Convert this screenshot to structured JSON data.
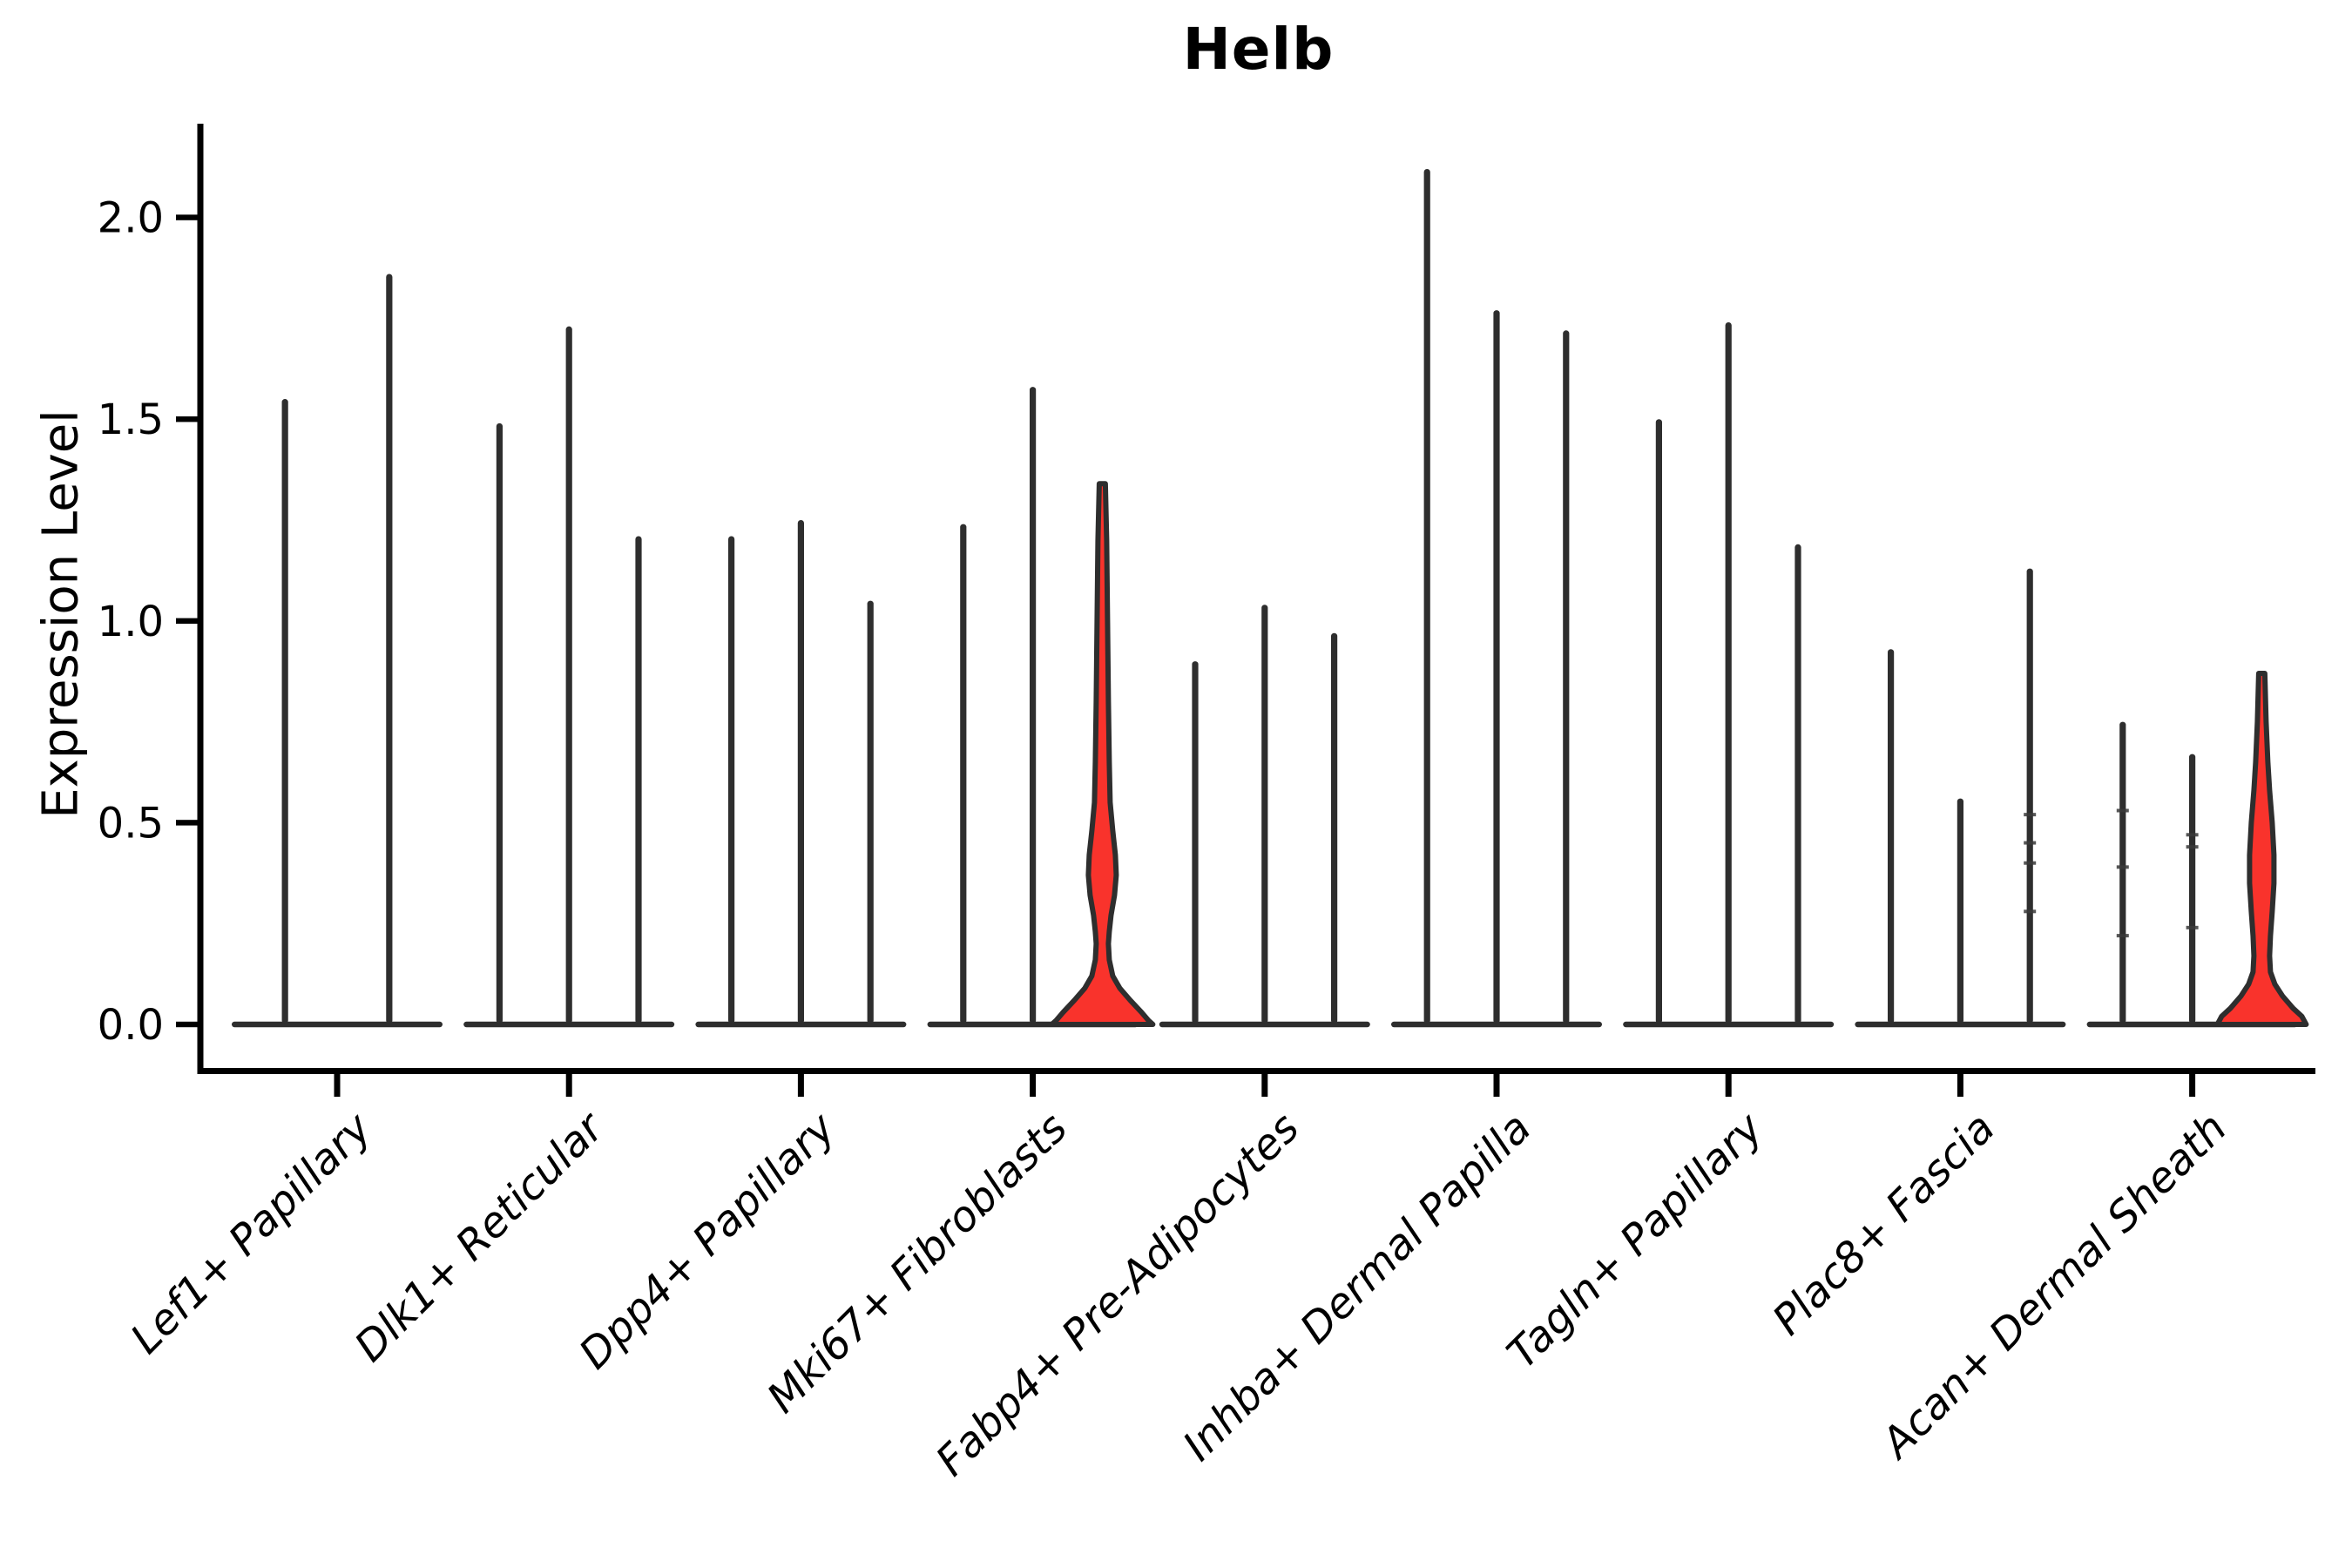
{
  "chart_data": {
    "type": "violin",
    "title": "Helb",
    "ylabel": "Expression Level",
    "xlabel": "",
    "ylim": [
      0,
      2.23
    ],
    "yticks": [
      "0.0",
      "0.5",
      "1.0",
      "1.5",
      "2.0"
    ],
    "ytick_values": [
      0.0,
      0.5,
      1.0,
      1.5,
      2.0
    ],
    "grid": false,
    "legend": "none",
    "colors": {
      "stem": "#2e2e2e",
      "violin_fill": "#f9332c",
      "axis": "#000000",
      "text": "#000000",
      "background": "#ffffff"
    },
    "groups": [
      {
        "label": "Lef1+ Papillary",
        "violins": [
          {
            "offset": -0.225,
            "max": 1.55,
            "shape": "spike"
          },
          {
            "offset": 0.225,
            "max": 1.86,
            "shape": "spike"
          }
        ]
      },
      {
        "label": "Dlk1+ Reticular",
        "violins": [
          {
            "offset": -0.3,
            "max": 1.49,
            "shape": "spike"
          },
          {
            "offset": 0,
            "max": 1.73,
            "shape": "spike"
          },
          {
            "offset": 0.3,
            "max": 1.21,
            "shape": "spike"
          }
        ]
      },
      {
        "label": "Dpp4+ Papillary",
        "violins": [
          {
            "offset": -0.3,
            "max": 1.21,
            "shape": "spike"
          },
          {
            "offset": 0,
            "max": 1.25,
            "shape": "spike"
          },
          {
            "offset": 0.3,
            "max": 1.05,
            "shape": "spike"
          }
        ]
      },
      {
        "label": "Mki67+ Fibroblasts",
        "violins": [
          {
            "offset": -0.3,
            "max": 1.24,
            "shape": "spike"
          },
          {
            "offset": 0,
            "max": 1.58,
            "shape": "spike"
          },
          {
            "offset": 0.3,
            "max": 1.34,
            "shape": "violin",
            "filled": true,
            "profile": [
              [
                1.34,
                3.5
              ],
              [
                1.2,
                5
              ],
              [
                1.0,
                6
              ],
              [
                0.8,
                7
              ],
              [
                0.65,
                8
              ],
              [
                0.55,
                9
              ],
              [
                0.48,
                12
              ],
              [
                0.42,
                15
              ],
              [
                0.37,
                16
              ],
              [
                0.32,
                14
              ],
              [
                0.27,
                10
              ],
              [
                0.23,
                8
              ],
              [
                0.2,
                7
              ],
              [
                0.16,
                8
              ],
              [
                0.12,
                12
              ],
              [
                0.09,
                20
              ],
              [
                0.06,
                32
              ],
              [
                0.03,
                45
              ],
              [
                0.01,
                53
              ],
              [
                0.0,
                58
              ]
            ]
          }
        ]
      },
      {
        "label": "Fabp4+ Pre-Adipocytes",
        "violins": [
          {
            "offset": -0.3,
            "max": 0.9,
            "shape": "spike"
          },
          {
            "offset": 0,
            "max": 1.04,
            "shape": "spike"
          },
          {
            "offset": 0.3,
            "max": 0.97,
            "shape": "spike"
          }
        ]
      },
      {
        "label": "Inhba+ Dermal Papilla",
        "violins": [
          {
            "offset": -0.3,
            "max": 2.12,
            "shape": "spike"
          },
          {
            "offset": 0,
            "max": 1.77,
            "shape": "spike"
          },
          {
            "offset": 0.3,
            "max": 1.72,
            "shape": "spike"
          }
        ]
      },
      {
        "label": "Tagln+ Papillary",
        "violins": [
          {
            "offset": -0.3,
            "max": 1.5,
            "shape": "spike"
          },
          {
            "offset": 0,
            "max": 1.74,
            "shape": "spike"
          },
          {
            "offset": 0.3,
            "max": 1.19,
            "shape": "spike"
          }
        ]
      },
      {
        "label": "Plac8+ Fascia",
        "violins": [
          {
            "offset": -0.3,
            "max": 0.93,
            "shape": "spike"
          },
          {
            "offset": 0,
            "max": 0.56,
            "shape": "spike"
          },
          {
            "offset": 0.3,
            "max": 1.13,
            "shape": "spike",
            "points": [
              0.52,
              0.45,
              0.4,
              0.28
            ]
          }
        ]
      },
      {
        "label": "Acan+ Dermal Sheath",
        "violins": [
          {
            "offset": -0.3,
            "max": 0.75,
            "shape": "spike",
            "points": [
              0.53,
              0.39,
              0.22
            ]
          },
          {
            "offset": 0,
            "max": 0.67,
            "shape": "spike",
            "points": [
              0.47,
              0.44,
              0.24
            ]
          },
          {
            "offset": 0.3,
            "max": 0.87,
            "shape": "violin",
            "filled": true,
            "profile": [
              [
                0.87,
                3.5
              ],
              [
                0.75,
                5
              ],
              [
                0.65,
                7
              ],
              [
                0.58,
                9
              ],
              [
                0.5,
                12
              ],
              [
                0.42,
                14
              ],
              [
                0.35,
                14
              ],
              [
                0.28,
                12
              ],
              [
                0.22,
                10
              ],
              [
                0.17,
                9
              ],
              [
                0.13,
                10
              ],
              [
                0.1,
                15
              ],
              [
                0.07,
                24
              ],
              [
                0.04,
                36
              ],
              [
                0.02,
                46
              ],
              [
                0.0,
                51
              ]
            ]
          }
        ]
      }
    ]
  }
}
